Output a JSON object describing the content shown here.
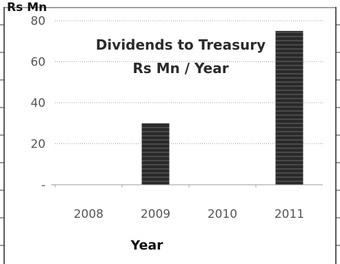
{
  "chart_data": {
    "type": "bar",
    "title": [
      "Dividends to Treasury",
      "Rs  Mn / Year"
    ],
    "ylabel": "Rs Mn",
    "xlabel": "Year",
    "categories": [
      "2008",
      "2009",
      "2010",
      "2011"
    ],
    "values": [
      0,
      30,
      0,
      75
    ],
    "ylim": [
      0,
      80
    ],
    "yticks": [
      80,
      60,
      40,
      20,
      0
    ],
    "ytick_labels": [
      "80",
      "60",
      "40",
      "20",
      "-"
    ],
    "grid": true,
    "legend": "none",
    "bar_color": "#2a2a2a"
  }
}
